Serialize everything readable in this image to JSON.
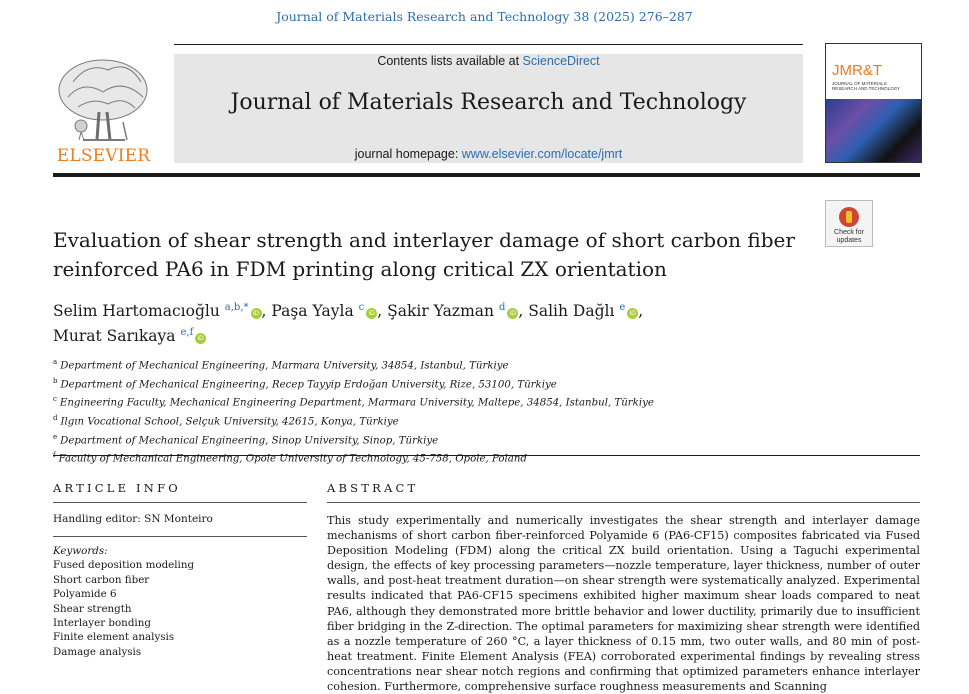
{
  "citation": "Journal of Materials Research and Technology 38 (2025) 276–287",
  "header": {
    "publisher": "ELSEVIER",
    "contents_prefix": "Contents lists available at ",
    "contents_link": "ScienceDirect",
    "journal_name": "Journal of Materials Research and Technology",
    "homepage_prefix": "journal homepage: ",
    "homepage_url": "www.elsevier.com/locate/jmrt",
    "cover_title": "JMR&T",
    "cover_subtitle": "JOURNAL OF MATERIALS RESEARCH AND TECHNOLOGY"
  },
  "check_updates": "Check for updates",
  "title": "Evaluation of shear strength and interlayer damage of short carbon fiber reinforced PA6 in FDM printing along critical ZX orientation",
  "authors": [
    {
      "name": "Selim Hartomacıoğlu",
      "sup": "a,b,*",
      "sep": ", "
    },
    {
      "name": "Paşa Yayla",
      "sup": "c",
      "sep": ", "
    },
    {
      "name": "Şakir Yazman",
      "sup": "d",
      "sep": ", "
    },
    {
      "name": "Salih Dağlı",
      "sup": "e",
      "sep": ","
    },
    {
      "name": "Murat Sarıkaya",
      "sup": "e,f",
      "sep": ""
    }
  ],
  "affiliations": [
    {
      "key": "a",
      "text": "Department of Mechanical Engineering, Marmara University, 34854, Istanbul, Türkiye"
    },
    {
      "key": "b",
      "text": "Department of Mechanical Engineering, Recep Tayyip Erdoğan University, Rize, 53100, Türkiye"
    },
    {
      "key": "c",
      "text": "Engineering Faculty, Mechanical Engineering Department, Marmara University, Maltepe, 34854, Istanbul, Türkiye"
    },
    {
      "key": "d",
      "text": "Ilgın Vocational School, Selçuk University, 42615, Konya, Türkiye"
    },
    {
      "key": "e",
      "text": "Department of Mechanical Engineering, Sinop University, Sinop, Türkiye"
    },
    {
      "key": "f",
      "text": "Faculty of Mechanical Engineering, Opole University of Technology, 45-758, Opole, Poland"
    }
  ],
  "article_info": {
    "heading": "ARTICLE INFO",
    "handling_editor": "Handling editor: SN Monteiro",
    "keywords_label": "Keywords:",
    "keywords": [
      "Fused deposition modeling",
      "Short carbon fiber",
      "Polyamide 6",
      "Shear strength",
      "Interlayer bonding",
      "Finite element analysis",
      "Damage analysis"
    ]
  },
  "abstract": {
    "heading": "ABSTRACT",
    "text": "This study experimentally and numerically investigates the shear strength and interlayer damage mechanisms of short carbon fiber-reinforced Polyamide 6 (PA6-CF15) composites fabricated via Fused Deposition Modeling (FDM) along the critical ZX build orientation. Using a Taguchi experimental design, the effects of key processing parameters—nozzle temperature, layer thickness, number of outer walls, and post-heat treatment duration—on shear strength were systematically analyzed. Experimental results indicated that PA6-CF15 specimens exhibited higher maximum shear loads compared to neat PA6, although they demonstrated more brittle behavior and lower ductility, primarily due to insufficient fiber bridging in the Z-direction. The optimal parameters for maximizing shear strength were identified as a nozzle temperature of 260 °C, a layer thickness of 0.15 mm, two outer walls, and 80 min of post-heat treatment. Finite Element Analysis (FEA) corroborated experimental findings by revealing stress concentrations near shear notch regions and confirming that optimized parameters enhance interlayer cohesion. Furthermore, comprehensive surface roughness measurements and Scanning"
  }
}
